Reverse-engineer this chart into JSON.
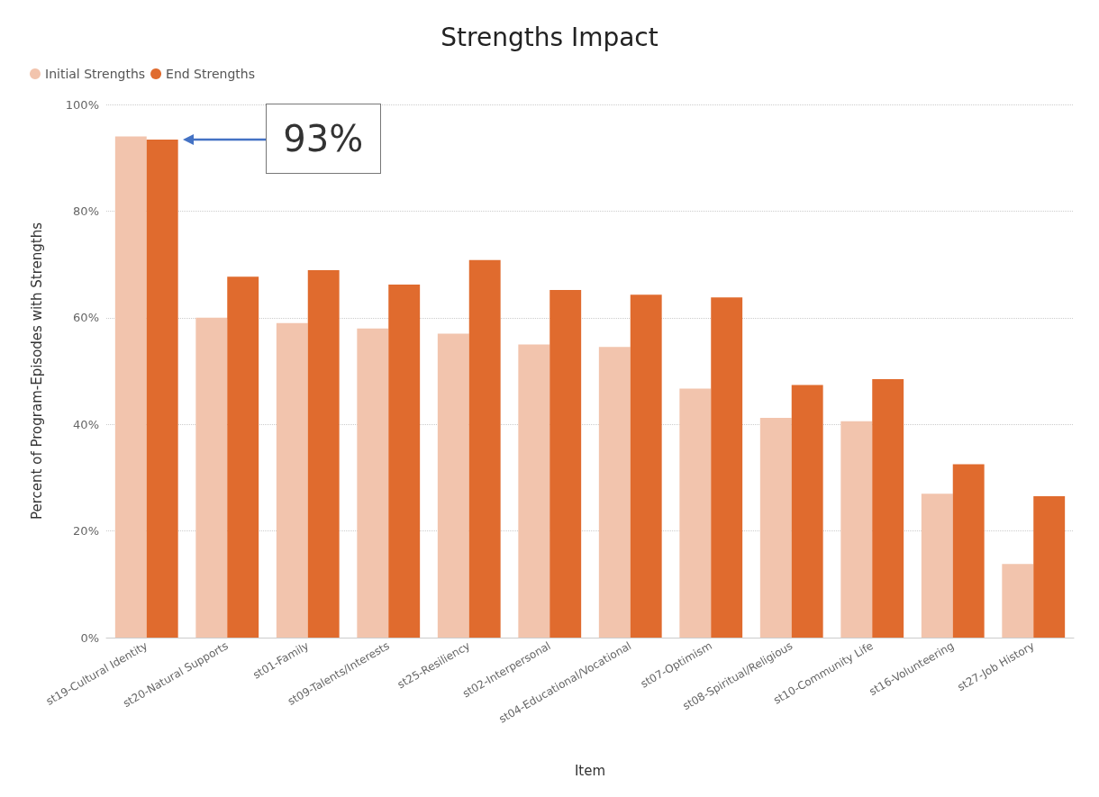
{
  "chart_data": {
    "type": "bar",
    "title": "Strengths Impact",
    "xlabel": "Item",
    "ylabel": "Percent of Program-Episodes with Strengths",
    "categories": [
      "st19-Cultural Identity",
      "st20-Natural Supports",
      "st01-Family",
      "st09-Talents/Interests",
      "st25-Resiliency",
      "st02-Interpersonal",
      "st04-Educational/Vocational",
      "st07-Optimism",
      "st08-Spiritual/Religious",
      "st10-Community Life",
      "st16-Volunteering",
      "st27-Job History"
    ],
    "series": [
      {
        "name": "Initial Strengths",
        "color": "#f2c4ad",
        "values": [
          94,
          60,
          59,
          58,
          57,
          55,
          54.5,
          46.7,
          41.2,
          40.6,
          27,
          13.8
        ]
      },
      {
        "name": "End Strengths",
        "color": "#e06b2e",
        "values": [
          93.4,
          67.7,
          68.9,
          66.2,
          70.8,
          65.2,
          64.3,
          63.8,
          47.4,
          48.5,
          32.5,
          26.5
        ]
      }
    ],
    "ylim": [
      0,
      100
    ],
    "yticks": [
      {
        "value": 0,
        "label": "0%"
      },
      {
        "value": 20,
        "label": "20%"
      },
      {
        "value": 40,
        "label": "40%"
      },
      {
        "value": 60,
        "label": "60%"
      },
      {
        "value": 80,
        "label": "80%"
      },
      {
        "value": 100,
        "label": "100%"
      }
    ],
    "grid": "y",
    "legend": "top left",
    "annotations": [
      "93%"
    ]
  }
}
